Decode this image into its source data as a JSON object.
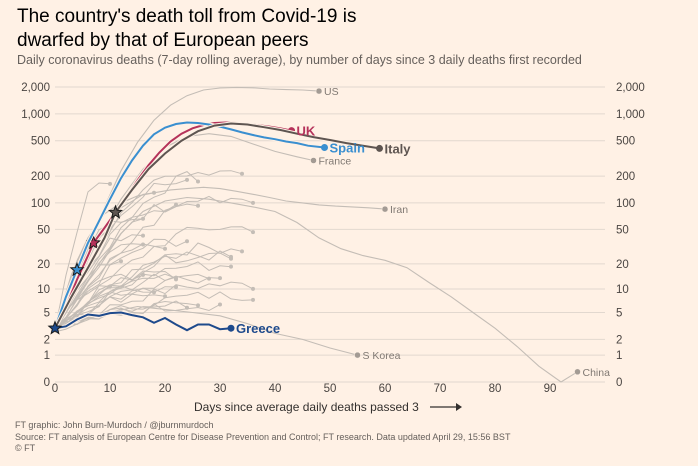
{
  "title": "The country's death toll from Covid-19 is dwarfed by that of European peers",
  "subtitle": "Daily coronavirus deaths (7-day rolling average), by number of days since 3 daily deaths first recorded",
  "footer": {
    "credit": "FT graphic: John Burn-Murdoch / @jburnmurdoch",
    "source": "Source: FT analysis of European Centre for Disease Prevention and Control; FT research. Data updated April 29, 15:56 BST",
    "copyright": "© FT"
  },
  "colors": {
    "background": "#fff1e5",
    "other_countries": "#c4bdb6",
    "grid": "#e2d8cf",
    "uk": "#b5325a",
    "spain": "#3a8fd0",
    "italy": "#5e5551",
    "greece": "#1e4a8c",
    "label_grey": "#807973"
  },
  "chart_data": {
    "type": "line",
    "title": "The country's death toll from Covid-19 is dwarfed by that of European peers",
    "subtitle": "Daily coronavirus deaths (7-day rolling average), by number of days since 3 daily deaths first recorded",
    "xlabel": "Days since average daily deaths passed 3",
    "ylabel": "",
    "yscale": "log (symlog, includes 0)",
    "xlim": [
      0,
      100
    ],
    "ylim": [
      0,
      2000
    ],
    "x_ticks": [
      0,
      10,
      20,
      30,
      40,
      50,
      60,
      70,
      80,
      90
    ],
    "y_ticks": [
      0,
      1,
      2,
      5,
      10,
      20,
      50,
      100,
      200,
      500,
      1000,
      2000
    ],
    "y_tick_labels": [
      "0",
      "1",
      "2",
      "5",
      "10",
      "20",
      "50",
      "100",
      "200",
      "500",
      "1,000",
      "2,000"
    ],
    "grid": true,
    "highlighted_series": [
      {
        "name": "UK",
        "color": "#b5325a",
        "label_weight": "bold",
        "x": [
          0,
          2,
          4,
          6,
          7,
          9,
          11,
          13,
          15,
          17,
          19,
          21,
          23,
          25,
          27,
          29,
          31,
          33,
          35,
          37,
          39,
          41,
          43
        ],
        "y": [
          3,
          6,
          13,
          25,
          35,
          52,
          78,
          118,
          180,
          265,
          370,
          490,
          600,
          690,
          750,
          790,
          800,
          790,
          770,
          745,
          720,
          690,
          650
        ],
        "stars_at": [
          7
        ]
      },
      {
        "name": "Spain",
        "color": "#3a8fd0",
        "label_weight": "bold",
        "x": [
          0,
          2,
          4,
          6,
          8,
          10,
          12,
          14,
          16,
          18,
          20,
          22,
          24,
          26,
          28,
          30,
          32,
          34,
          36,
          38,
          40,
          42,
          44,
          46,
          49
        ],
        "y": [
          3,
          8,
          17,
          35,
          62,
          110,
          190,
          300,
          440,
          590,
          700,
          770,
          800,
          790,
          760,
          720,
          670,
          620,
          580,
          545,
          520,
          490,
          470,
          440,
          420
        ],
        "stars_at": [
          4
        ]
      },
      {
        "name": "Italy",
        "color": "#5e5551",
        "label_weight": "bold",
        "x": [
          0,
          3,
          6,
          9,
          11,
          14,
          17,
          20,
          23,
          26,
          29,
          32,
          35,
          38,
          41,
          44,
          47,
          50,
          53,
          56,
          59
        ],
        "y": [
          3,
          8,
          18,
          40,
          78,
          140,
          240,
          360,
          500,
          640,
          740,
          780,
          760,
          710,
          660,
          600,
          550,
          510,
          470,
          440,
          410
        ],
        "stars_at": [
          11
        ]
      },
      {
        "name": "Greece",
        "color": "#1e4a8c",
        "label_weight": "bold",
        "x": [
          0,
          2,
          4,
          6,
          8,
          10,
          12,
          14,
          16,
          18,
          20,
          22,
          24,
          26,
          28,
          30,
          32
        ],
        "y": [
          3,
          3.2,
          4,
          4.7,
          4.5,
          4.9,
          5,
          4.6,
          4.3,
          3.6,
          4.2,
          3.4,
          2.8,
          3.4,
          3.4,
          2.9,
          3
        ],
        "stars_at": [
          0
        ]
      }
    ],
    "labeled_grey_series": [
      {
        "name": "US",
        "x": [
          0,
          3,
          6,
          9,
          12,
          15,
          18,
          21,
          24,
          27,
          30,
          33,
          36,
          39,
          42,
          45,
          48
        ],
        "y": [
          3,
          10,
          30,
          90,
          230,
          480,
          850,
          1250,
          1600,
          1850,
          1950,
          1980,
          1960,
          1900,
          1870,
          1850,
          1800
        ]
      },
      {
        "name": "France",
        "x": [
          0,
          4,
          8,
          12,
          16,
          20,
          24,
          28,
          32,
          36,
          40,
          44,
          47
        ],
        "y": [
          3,
          12,
          40,
          110,
          240,
          420,
          560,
          600,
          560,
          460,
          380,
          330,
          300
        ]
      },
      {
        "name": "Iran",
        "x": [
          0,
          3,
          6,
          9,
          12,
          15,
          18,
          21,
          24,
          27,
          30,
          33,
          36,
          39,
          42,
          45,
          48,
          51,
          54,
          57,
          60
        ],
        "y": [
          3,
          15,
          40,
          75,
          100,
          120,
          130,
          140,
          145,
          150,
          145,
          135,
          125,
          115,
          105,
          100,
          95,
          92,
          90,
          88,
          85
        ]
      },
      {
        "name": "S Korea",
        "x": [
          0,
          5,
          10,
          15,
          20,
          25,
          30,
          35,
          40,
          45,
          50,
          55
        ],
        "y": [
          3,
          4,
          5,
          6,
          5.5,
          5,
          4.5,
          3.5,
          2.5,
          2,
          1.4,
          1
        ]
      },
      {
        "name": "China",
        "x": [
          0,
          4,
          8,
          12,
          16,
          20,
          24,
          28,
          32,
          36,
          40,
          44,
          48,
          52,
          56,
          60,
          64,
          68,
          72,
          76,
          80,
          84,
          88,
          92,
          95
        ],
        "y": [
          3,
          8,
          20,
          45,
          80,
          105,
          115,
          110,
          100,
          90,
          80,
          60,
          40,
          30,
          25,
          22,
          18,
          12,
          8,
          5,
          3,
          1.5,
          0.5,
          0,
          0.3
        ]
      }
    ],
    "annotations": [
      "US",
      "UK",
      "Spain",
      "Italy",
      "France",
      "Iran",
      "Greece",
      "S Korea",
      "China"
    ]
  }
}
